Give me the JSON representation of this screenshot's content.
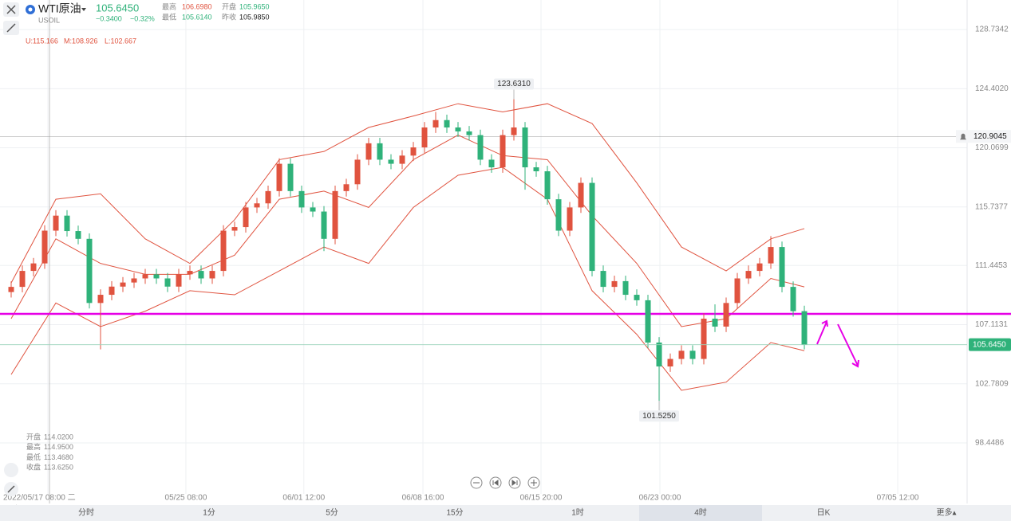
{
  "header": {
    "name": "WTI原油",
    "symbol": "USOIL",
    "price": "105.6450",
    "change": "−0.3400",
    "change_pct": "−0.32%",
    "high_label": "最高",
    "high": "106.6980",
    "open_label": "开盘",
    "open": "105.9650",
    "low_label": "最低",
    "low": "105.6140",
    "prev_label": "昨收",
    "prev": "105.9850"
  },
  "bb_info": [
    "U:115.166",
    "M:108.926",
    "L:102.667"
  ],
  "ohlc_info": [
    {
      "label": "开盘",
      "value": "114.0200"
    },
    {
      "label": "最高",
      "value": "114.9500"
    },
    {
      "label": "最低",
      "value": "113.4680"
    },
    {
      "label": "收盘",
      "value": "113.6250"
    }
  ],
  "tabs": [
    "分时",
    "1分",
    "5分",
    "15分",
    "1时",
    "4时",
    "日K",
    "更多▴"
  ],
  "selected_tab": 5,
  "chart_data": {
    "type": "candlestick",
    "up_color": "#e0533f",
    "down_color": "#2fb27a",
    "x": [
      0,
      1,
      2,
      3,
      4,
      5,
      6,
      7,
      8,
      9,
      10,
      11,
      12,
      13,
      14,
      15,
      16,
      17,
      18,
      19,
      20,
      21,
      22,
      23,
      24,
      25,
      26,
      27,
      28,
      29,
      30,
      31,
      32,
      33,
      34,
      35,
      36,
      37,
      38,
      39,
      40,
      41,
      42,
      43,
      44,
      45,
      46,
      47,
      48,
      49,
      50,
      51,
      52,
      53,
      54,
      55,
      56,
      57,
      58,
      59,
      60,
      61,
      62,
      63,
      64,
      65,
      66,
      67,
      68,
      69,
      70,
      71
    ],
    "open": [
      109.5,
      109.88,
      111.05,
      111.6,
      114,
      115.1,
      113.97,
      113.4,
      108.7,
      109.3,
      109.9,
      110.2,
      110.5,
      110.8,
      110.5,
      109.9,
      110.8,
      111.05,
      110.5,
      111.05,
      114,
      114.26,
      115.7,
      116,
      116.9,
      118.9,
      116.9,
      115.7,
      115.4,
      113.4,
      116.9,
      117.4,
      119.2,
      120.4,
      119.2,
      118.9,
      119.5,
      120.1,
      121.56,
      122.1,
      121.56,
      121.27,
      121,
      119.2,
      118.64,
      121,
      121.56,
      118.64,
      118.35,
      116.3,
      114,
      115.7,
      117.5,
      111.05,
      109.88,
      110.3,
      109.3,
      108.9,
      105.8,
      104.05,
      104.6,
      105.2,
      104.6,
      107.55,
      106.97,
      108.7,
      110.5,
      111.05,
      111.6,
      112.8,
      109.88,
      108.1
    ],
    "high": [
      110.28,
      111.45,
      112.0,
      114.4,
      115.5,
      115.5,
      114.37,
      113.8,
      109.7,
      110.3,
      110.6,
      110.9,
      111.2,
      111.2,
      110.9,
      111.2,
      111.45,
      111.45,
      111.45,
      114.4,
      114.66,
      116.1,
      116.4,
      117.3,
      119.3,
      119.3,
      117.3,
      116.1,
      115.8,
      117.3,
      117.8,
      119.6,
      120.8,
      120.8,
      119.6,
      119.9,
      120.5,
      121.96,
      122.7,
      122.5,
      121.96,
      121.67,
      121.4,
      119.6,
      121.4,
      123.631,
      121.96,
      119.04,
      118.75,
      116.7,
      116.1,
      117.9,
      117.9,
      111.45,
      110.7,
      110.7,
      109.7,
      109.3,
      106.2,
      105.0,
      105.6,
      105.6,
      107.95,
      108.6,
      109.1,
      110.9,
      111.45,
      112.0,
      113.6,
      113.2,
      110.28,
      108.5
    ],
    "low": [
      109.1,
      109.48,
      110.65,
      111.2,
      113.6,
      113.57,
      113.0,
      108.3,
      105.3,
      108.9,
      109.5,
      109.8,
      110.1,
      110.1,
      109.5,
      109.5,
      110.4,
      110.1,
      110.1,
      110.65,
      113.6,
      113.86,
      115.3,
      115.6,
      116.5,
      116.5,
      115.3,
      115.0,
      112.5,
      113.0,
      116.5,
      117.0,
      118.8,
      118.8,
      118.5,
      118.5,
      119.1,
      119.7,
      121.16,
      121.16,
      120.87,
      120.6,
      118.8,
      118.24,
      118.24,
      120.6,
      117.0,
      117.95,
      115.9,
      113.6,
      113.6,
      115.3,
      110.65,
      109.48,
      109.48,
      108.9,
      108.5,
      105.4,
      101.525,
      103.65,
      104.2,
      104.2,
      104.2,
      106.57,
      106.57,
      108.3,
      110.1,
      110.65,
      111.2,
      109.48,
      107.7,
      105.3
    ],
    "close": [
      109.88,
      111.05,
      111.6,
      114,
      115.1,
      113.97,
      113.4,
      108.7,
      109.3,
      109.9,
      110.2,
      110.5,
      110.8,
      110.5,
      109.9,
      110.8,
      111.05,
      110.5,
      111.05,
      114,
      114.26,
      115.7,
      116,
      116.9,
      118.9,
      116.9,
      115.7,
      115.4,
      113.4,
      116.9,
      117.4,
      119.2,
      120.4,
      119.2,
      118.9,
      119.5,
      120.1,
      121.56,
      122.1,
      121.56,
      121.27,
      121,
      119.2,
      118.64,
      121,
      121.56,
      118.64,
      118.35,
      116.3,
      114,
      115.7,
      117.5,
      111.05,
      109.88,
      110.3,
      109.3,
      108.9,
      105.8,
      104.05,
      104.6,
      105.2,
      104.6,
      107.55,
      106.97,
      108.7,
      110.5,
      111.05,
      111.6,
      112.8,
      109.88,
      108.1,
      105.645
    ],
    "bands": {
      "color": "#e0533f",
      "x": [
        0,
        4,
        8,
        12,
        16,
        20,
        24,
        28,
        32,
        36,
        40,
        44,
        48,
        52,
        56,
        60,
        64,
        68,
        71
      ],
      "upper": [
        110.17,
        116.3,
        116.7,
        113.4,
        111.6,
        114.8,
        119.2,
        119.8,
        121.56,
        122.4,
        123.3,
        122.7,
        123.3,
        121.85,
        117.5,
        112.8,
        111.05,
        113.4,
        114.15
      ],
      "middle": [
        107.55,
        113.4,
        111.6,
        110.8,
        110.8,
        112.2,
        116.3,
        116.9,
        115.7,
        119.2,
        121,
        119.5,
        119.2,
        115.1,
        111.6,
        106.97,
        107.55,
        110.5,
        109.88
      ],
      "lower": [
        103.46,
        108.7,
        106.97,
        108.1,
        109.6,
        109.3,
        111.05,
        112.8,
        111.6,
        115.7,
        118.06,
        118.64,
        116.3,
        109.6,
        106.4,
        102.3,
        102.9,
        105.8,
        105.2
      ]
    },
    "hline": 107.9,
    "hline_color": "#e600e6",
    "max_label": {
      "x": 45,
      "value": 123.631,
      "label": "123.6310"
    },
    "min_label": {
      "x": 58,
      "value": 101.525,
      "label": "101.5250"
    },
    "last_price": {
      "value": 105.645,
      "label": "105.6450"
    },
    "crosshair": {
      "x": 3.43,
      "y": 120.9045
    },
    "xlim": [
      -1,
      85.57
    ],
    "ylim": [
      94.71,
      130.9
    ],
    "yticks": [
      98.4486,
      102.7809,
      107.1131,
      111.4453,
      115.7377,
      120.0699,
      {
        "value": 124.402,
        "label": "124.4020"
      },
      128.7342
    ],
    "xticks": [
      {
        "value": 3.29,
        "label": "2022/05/17 08:00 二"
      },
      {
        "value": 15.64,
        "label": "05/25 08:00"
      },
      {
        "value": 26.2,
        "label": "06/01 12:00"
      },
      {
        "value": 36.86,
        "label": "06/08 16:00"
      },
      {
        "value": 47.43,
        "label": "06/15 20:00"
      },
      {
        "value": 58.07,
        "label": "06/23 00:00"
      },
      {
        "value": 79.36,
        "label": "07/05 12:00"
      }
    ],
    "grid": true
  }
}
